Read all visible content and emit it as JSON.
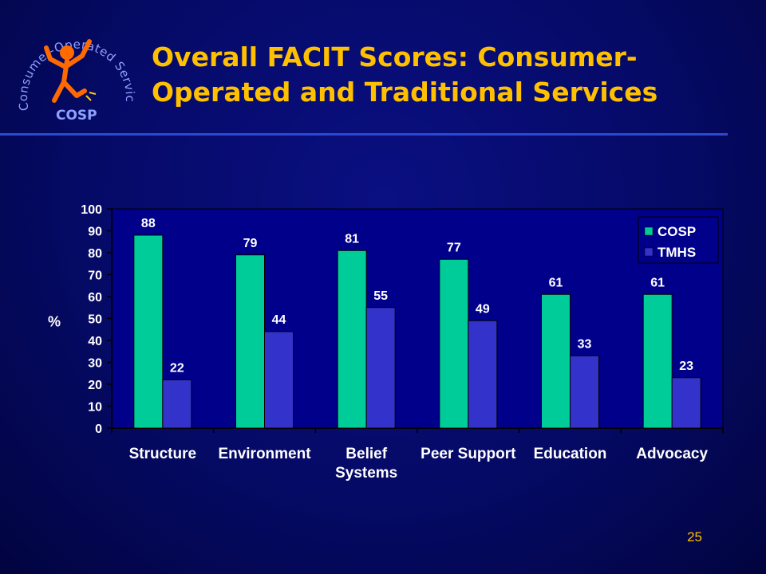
{
  "slide": {
    "title_line1": "Overall FACIT Scores: Consumer-",
    "title_line2": "Operated and Traditional Services",
    "page_number": "25"
  },
  "logo": {
    "arc_text": "Consumer-Operated Service Program",
    "abbrev": "COSP"
  },
  "chart_data": {
    "type": "bar",
    "categories": [
      "Structure",
      "Environment",
      "Belief Systems",
      "Peer Support",
      "Education",
      "Advocacy"
    ],
    "category_lines": [
      [
        "Structure"
      ],
      [
        "Environment"
      ],
      [
        "Belief",
        "Systems"
      ],
      [
        "Peer Support"
      ],
      [
        "Education"
      ],
      [
        "Advocacy"
      ]
    ],
    "series": [
      {
        "name": "COSP",
        "values": [
          88,
          79,
          81,
          77,
          61,
          61
        ],
        "color": "#00cc99"
      },
      {
        "name": "TMHS",
        "values": [
          22,
          44,
          55,
          49,
          33,
          23
        ],
        "color": "#3333cc"
      }
    ],
    "ylabel": "%",
    "xlabel": "",
    "ylim": [
      0,
      100
    ],
    "yticks": [
      0,
      10,
      20,
      30,
      40,
      50,
      60,
      70,
      80,
      90,
      100
    ],
    "legend_position": "top-right",
    "data_labels": true,
    "grid": false
  },
  "colors": {
    "background": "#050a66",
    "title": "#ffc000",
    "plot_area": "#00008b",
    "text": "#ffffff",
    "rule": "#2b4ad0"
  }
}
